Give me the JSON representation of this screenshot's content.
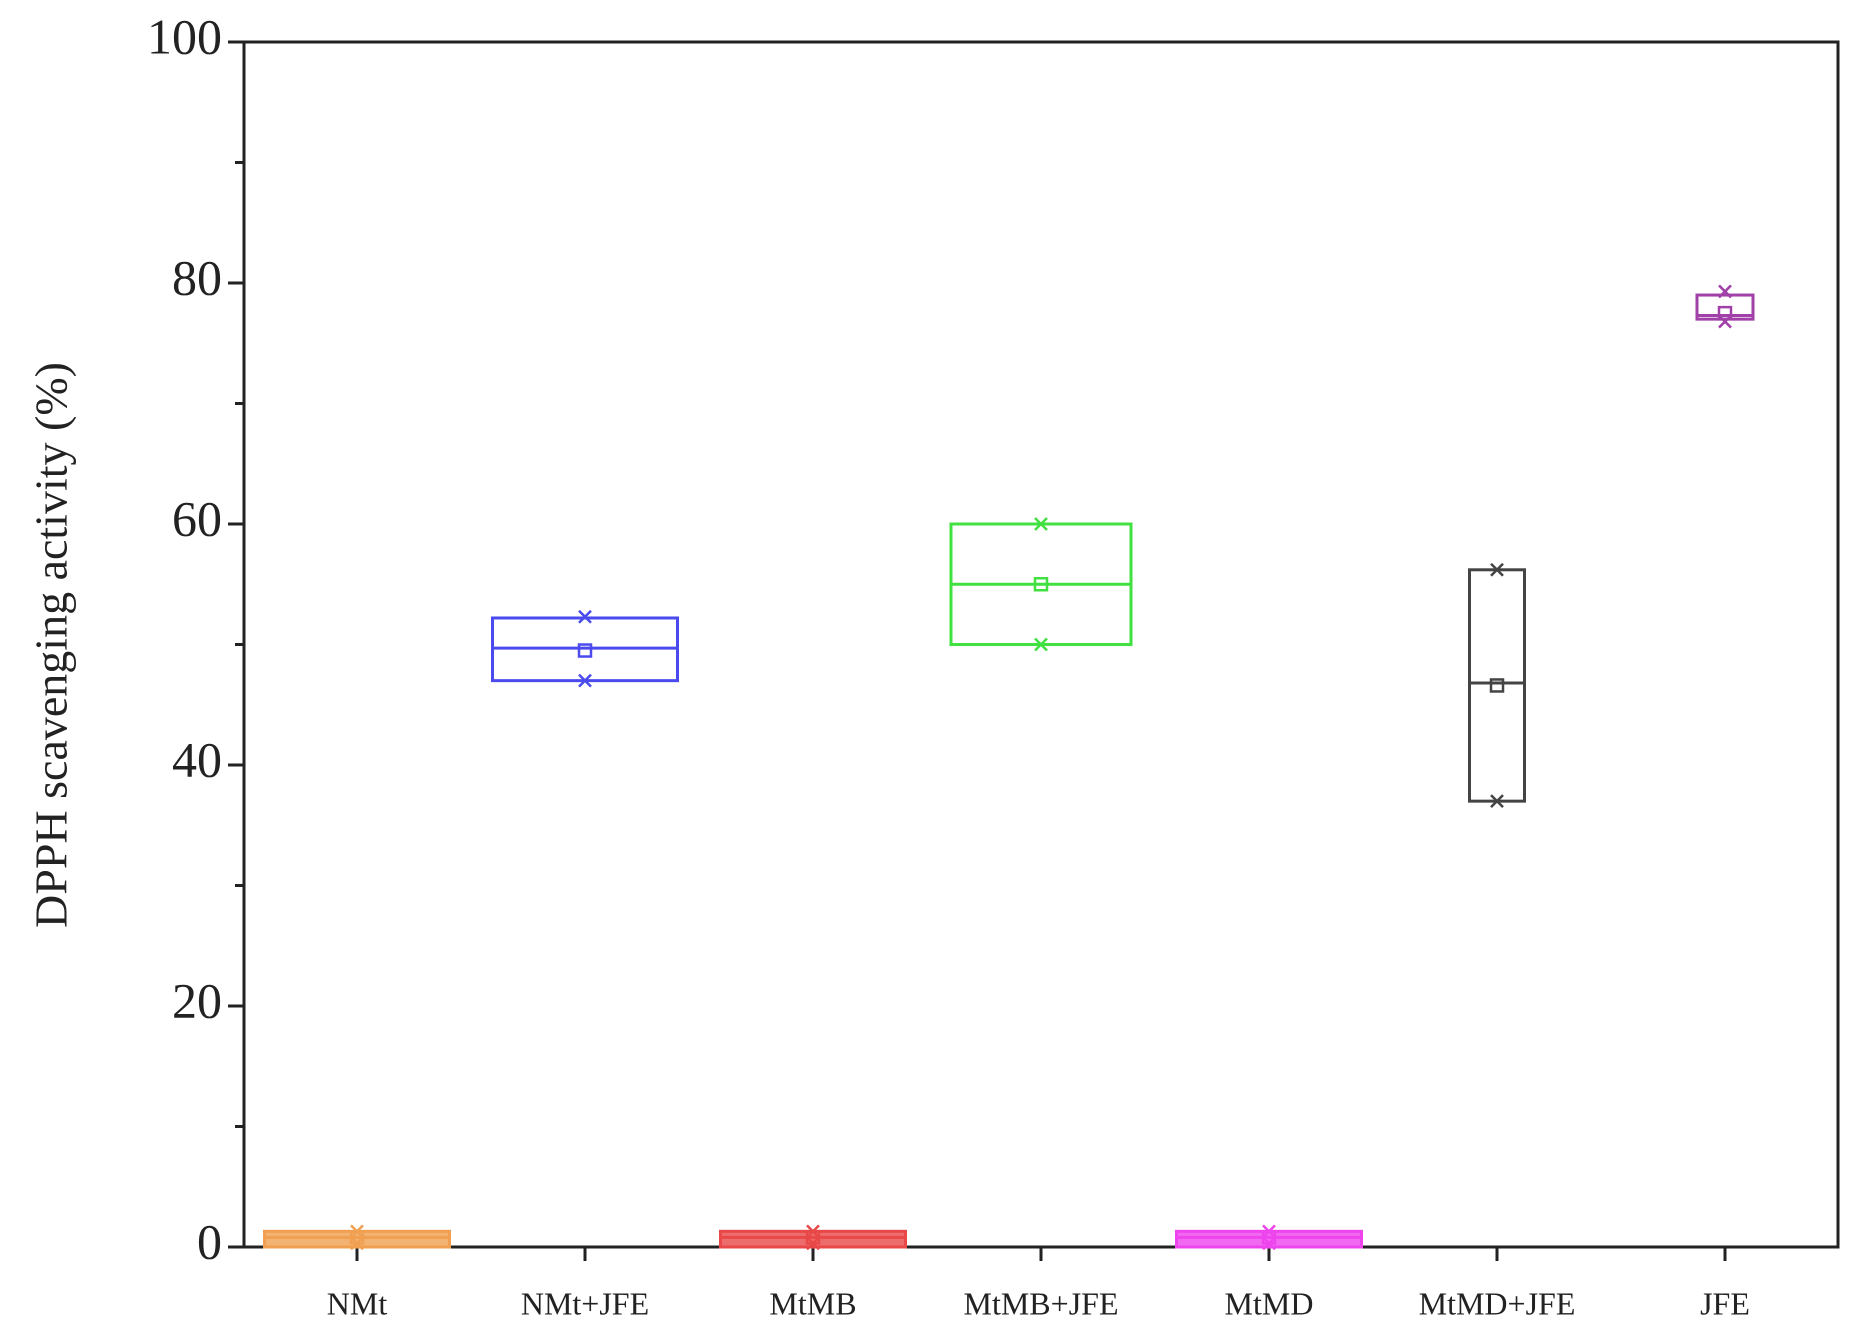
{
  "chart_data": {
    "type": "box",
    "y_label": "DPPH scavenging activity (%)",
    "categories": [
      "NMt",
      "NMt+JFE",
      "MtMB",
      "MtMB+JFE",
      "MtMD",
      "MtMD+JFE",
      "JFE"
    ],
    "colors": [
      "#f0a050",
      "#4a4aee",
      "#e84848",
      "#40e040",
      "#ee44ee",
      "#444444",
      "#a040a8"
    ],
    "filled": [
      true,
      false,
      true,
      false,
      true,
      false,
      false
    ],
    "q1": [
      0,
      47,
      0,
      50,
      0,
      37,
      77
    ],
    "median": [
      0.8,
      49.7,
      0.8,
      55,
      0.8,
      46.8,
      77.3
    ],
    "q3": [
      1.3,
      52.2,
      1.3,
      60,
      1.3,
      56.2,
      79
    ],
    "mean": [
      0.8,
      49.5,
      0.8,
      55,
      0.8,
      46.6,
      77.5
    ],
    "min": [
      0.3,
      47,
      0.3,
      50,
      0.3,
      37,
      76.8
    ],
    "max": [
      1.3,
      52.3,
      1.3,
      60,
      1.3,
      56.2,
      79.3
    ],
    "ylim": [
      0,
      100
    ],
    "yticks": [
      0,
      20,
      40,
      60,
      80,
      100
    ],
    "yminor_ticks": [
      10,
      30,
      50,
      70,
      90
    ]
  }
}
